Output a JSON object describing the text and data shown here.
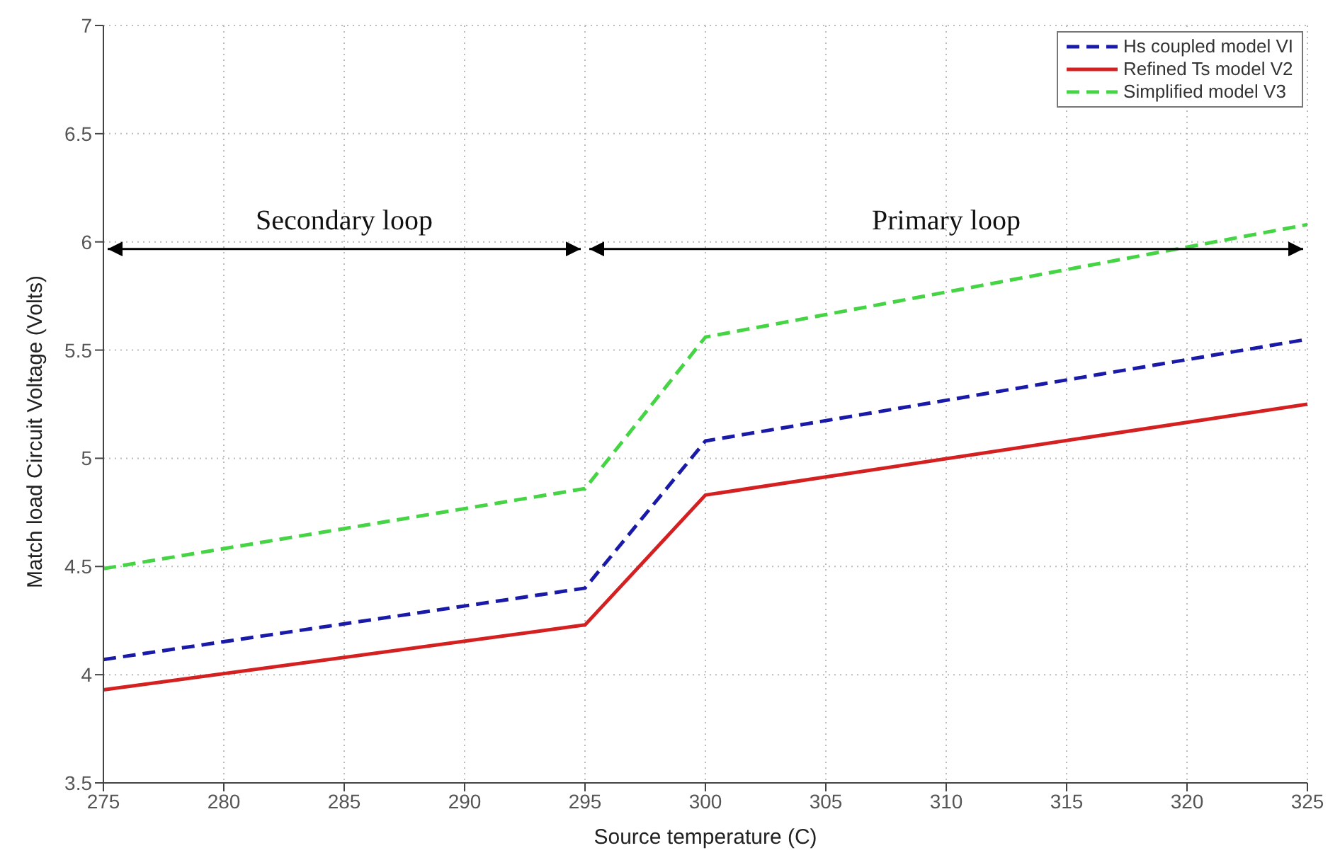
{
  "chart_data": {
    "type": "line",
    "xlabel": "Source temperature (C)",
    "ylabel": "Match load Circuit Voltage (Volts)",
    "x": [
      275,
      295,
      300,
      325
    ],
    "series": [
      {
        "name": "Hs coupled model VI",
        "color": "#1a1aa8",
        "line_style": "dashed",
        "values": [
          4.07,
          4.4,
          5.08,
          5.55
        ]
      },
      {
        "name": "Refined Ts model V2",
        "color": "#d42020",
        "line_style": "solid",
        "values": [
          3.93,
          4.23,
          4.83,
          5.25
        ]
      },
      {
        "name": "Simplified model V3",
        "color": "#44d444",
        "line_style": "dashed",
        "values": [
          4.49,
          4.86,
          5.56,
          6.08
        ]
      }
    ],
    "xlim": [
      275,
      325
    ],
    "xticks": [
      275,
      280,
      285,
      290,
      295,
      300,
      305,
      310,
      315,
      320,
      325
    ],
    "ylim": [
      3.5,
      7
    ],
    "yticks": [
      3.5,
      4,
      4.5,
      5,
      5.5,
      6,
      6.5,
      7
    ],
    "grid": true,
    "legend": "top right",
    "marker": "none",
    "annotations": [
      "Secondary loop",
      "Primary loop"
    ]
  }
}
